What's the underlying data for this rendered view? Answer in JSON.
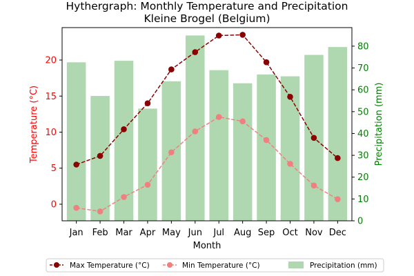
{
  "chart_data": {
    "type": "bar+line",
    "title": "Hythergraph: Monthly Temperature and Precipitation",
    "subtitle": "Kleine Brogel (Belgium)",
    "xlabel": "Month",
    "ylabel_left": "Temperature (°C)",
    "ylabel_right": "Precipitation (mm)",
    "categories": [
      "Jan",
      "Feb",
      "Mar",
      "Apr",
      "May",
      "Jun",
      "Jul",
      "Aug",
      "Sep",
      "Oct",
      "Nov",
      "Dec"
    ],
    "ylim_left": [
      -2.3,
      24.5
    ],
    "ylim_right": [
      0,
      88.5
    ],
    "yticks_left": [
      0,
      5,
      10,
      15,
      20
    ],
    "yticks_right": [
      0,
      10,
      20,
      30,
      40,
      50,
      60,
      70,
      80
    ],
    "series": [
      {
        "name": "Max Temperature (°C)",
        "kind": "line",
        "axis": "left",
        "color": "#8b0000",
        "values": [
          5.5,
          6.7,
          10.4,
          14.0,
          18.7,
          21.1,
          23.4,
          23.5,
          19.7,
          14.9,
          9.2,
          6.4
        ]
      },
      {
        "name": "Min Temperature (°C)",
        "kind": "line",
        "axis": "left",
        "color": "#f08080",
        "values": [
          -0.5,
          -1.0,
          1.0,
          2.7,
          7.2,
          10.1,
          12.1,
          11.5,
          8.9,
          5.6,
          2.6,
          0.7
        ]
      },
      {
        "name": "Precipitation (mm)",
        "kind": "bar",
        "axis": "right",
        "color": "#b0d8b0",
        "values": [
          72.6,
          57.2,
          73.3,
          51.4,
          63.9,
          84.9,
          69.0,
          63.0,
          67.0,
          66.2,
          76.0,
          79.6
        ]
      }
    ],
    "colors": {
      "left_axis": "#ff0000",
      "right_axis": "#008000"
    },
    "legend_position": "bottom",
    "grid": false
  }
}
